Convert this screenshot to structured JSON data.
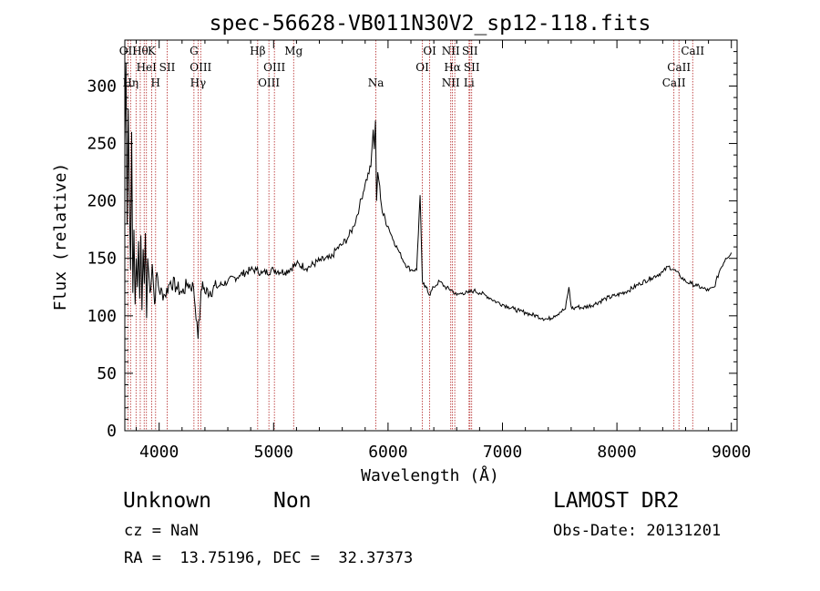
{
  "chart_data": {
    "type": "line",
    "title": "spec-56628-VB011N30V2_sp12-118.fits",
    "xlabel": "Wavelength (Å)",
    "ylabel": "Flux (relative)",
    "xlim": [
      3700,
      9050
    ],
    "ylim": [
      0,
      340
    ],
    "x_ticks": [
      4000,
      5000,
      6000,
      7000,
      8000,
      9000
    ],
    "y_ticks": [
      0,
      50,
      100,
      150,
      200,
      250,
      300
    ],
    "grid": false,
    "series": [
      {
        "x": [
          3700,
          3710,
          3720,
          3730,
          3740,
          3750,
          3760,
          3770,
          3780,
          3790,
          3800,
          3810,
          3820,
          3830,
          3840,
          3850,
          3860,
          3870,
          3880,
          3890,
          3900,
          3920,
          3940,
          3960,
          3980,
          4000,
          4050,
          4100,
          4150,
          4200,
          4250,
          4300,
          4330,
          4340,
          4360,
          4380,
          4400,
          4500,
          4600,
          4700,
          4800,
          4850,
          4900,
          5000,
          5100,
          5200,
          5300,
          5400,
          5500,
          5550,
          5600,
          5650,
          5700,
          5750,
          5800,
          5850,
          5870,
          5880,
          5890,
          5900,
          5910,
          5920,
          5950,
          6000,
          6050,
          6100,
          6150,
          6200,
          6250,
          6280,
          6300,
          6320,
          6340,
          6360,
          6400,
          6450,
          6500,
          6560,
          6600,
          6650,
          6700,
          6750,
          6800,
          6850,
          6900,
          6950,
          7000,
          7050,
          7100,
          7150,
          7200,
          7250,
          7300,
          7350,
          7400,
          7450,
          7500,
          7550,
          7580,
          7600,
          7620,
          7650,
          7700,
          7800,
          7900,
          8000,
          8100,
          8200,
          8300,
          8400,
          8450,
          8500,
          8550,
          8600,
          8650,
          8700,
          8750,
          8800,
          8850,
          8900,
          8950,
          9000
        ],
        "y": [
          250,
          320,
          180,
          280,
          200,
          140,
          260,
          120,
          175,
          110,
          150,
          125,
          165,
          115,
          170,
          105,
          158,
          128,
          172,
          98,
          150,
          120,
          145,
          110,
          138,
          122,
          118,
          130,
          125,
          120,
          128,
          125,
          95,
          80,
          110,
          130,
          120,
          125,
          130,
          135,
          140,
          140,
          137,
          140,
          138,
          145,
          142,
          148,
          150,
          158,
          162,
          168,
          178,
          195,
          215,
          230,
          262,
          245,
          270,
          200,
          225,
          218,
          190,
          178,
          165,
          155,
          145,
          140,
          140,
          205,
          130,
          125,
          125,
          118,
          125,
          130,
          125,
          122,
          118,
          120,
          120,
          122,
          120,
          118,
          115,
          112,
          110,
          108,
          106,
          104,
          103,
          101,
          100,
          98,
          97,
          100,
          103,
          106,
          125,
          108,
          106,
          108,
          107,
          110,
          115,
          118,
          122,
          128,
          133,
          138,
          143,
          140,
          135,
          130,
          128,
          126,
          124,
          122,
          125,
          140,
          150,
          155
        ]
      }
    ],
    "line_marks": [
      {
        "wavelength": 3727,
        "row1": "OII",
        "row2": "",
        "row3": ""
      },
      {
        "wavelength": 3750,
        "row1": "",
        "row2": "",
        "row3": "Hη"
      },
      {
        "wavelength": 3798,
        "row1": "",
        "row2": "",
        "row3": ""
      },
      {
        "wavelength": 3835,
        "row1": "Hθ",
        "row2": "",
        "row3": ""
      },
      {
        "wavelength": 3869,
        "row1": "",
        "row2": "",
        "row3": ""
      },
      {
        "wavelength": 3889,
        "row1": "",
        "row2": "HeI",
        "row3": ""
      },
      {
        "wavelength": 3934,
        "row1": "K",
        "row2": "",
        "row3": ""
      },
      {
        "wavelength": 3969,
        "row1": "",
        "row2": "",
        "row3": "H"
      },
      {
        "wavelength": 4070,
        "row1": "",
        "row2": "SII",
        "row3": ""
      },
      {
        "wavelength": 4304,
        "row1": "G",
        "row2": "",
        "row3": ""
      },
      {
        "wavelength": 4340,
        "row1": "",
        "row2": "",
        "row3": "Hγ"
      },
      {
        "wavelength": 4363,
        "row1": "",
        "row2": "OIII",
        "row3": ""
      },
      {
        "wavelength": 4861,
        "row1": "Hβ",
        "row2": "",
        "row3": ""
      },
      {
        "wavelength": 4959,
        "row1": "",
        "row2": "",
        "row3": "OIII"
      },
      {
        "wavelength": 5007,
        "row1": "",
        "row2": "OIII",
        "row3": ""
      },
      {
        "wavelength": 5175,
        "row1": "Mg",
        "row2": "",
        "row3": ""
      },
      {
        "wavelength": 5894,
        "row1": "",
        "row2": "",
        "row3": "Na"
      },
      {
        "wavelength": 6300,
        "row1": "",
        "row2": "OI",
        "row3": ""
      },
      {
        "wavelength": 6364,
        "row1": "OI",
        "row2": "",
        "row3": ""
      },
      {
        "wavelength": 6548,
        "row1": "NII",
        "row2": "",
        "row3": "NII"
      },
      {
        "wavelength": 6563,
        "row1": "",
        "row2": "Hα",
        "row3": ""
      },
      {
        "wavelength": 6583,
        "row1": "",
        "row2": "",
        "row3": ""
      },
      {
        "wavelength": 6708,
        "row1": "",
        "row2": "",
        "row3": "Li"
      },
      {
        "wavelength": 6716,
        "row1": "SII",
        "row2": "",
        "row3": ""
      },
      {
        "wavelength": 6731,
        "row1": "",
        "row2": "SII",
        "row3": ""
      },
      {
        "wavelength": 8498,
        "row1": "",
        "row2": "",
        "row3": "CaII"
      },
      {
        "wavelength": 8542,
        "row1": "",
        "row2": "CaII",
        "row3": ""
      },
      {
        "wavelength": 8662,
        "row1": "CaII",
        "row2": "",
        "row3": ""
      }
    ],
    "colors": {
      "spectrum": "#000000",
      "line_marks": "#b22222",
      "axes": "#000000"
    }
  },
  "footer": {
    "object_class": "Unknown",
    "object_subclass": "Non",
    "survey": "LAMOST DR2",
    "cz": "cz = NaN",
    "obs_date": "Obs-Date: 20131201",
    "radec": "RA =  13.75196, DEC =  32.37373"
  }
}
